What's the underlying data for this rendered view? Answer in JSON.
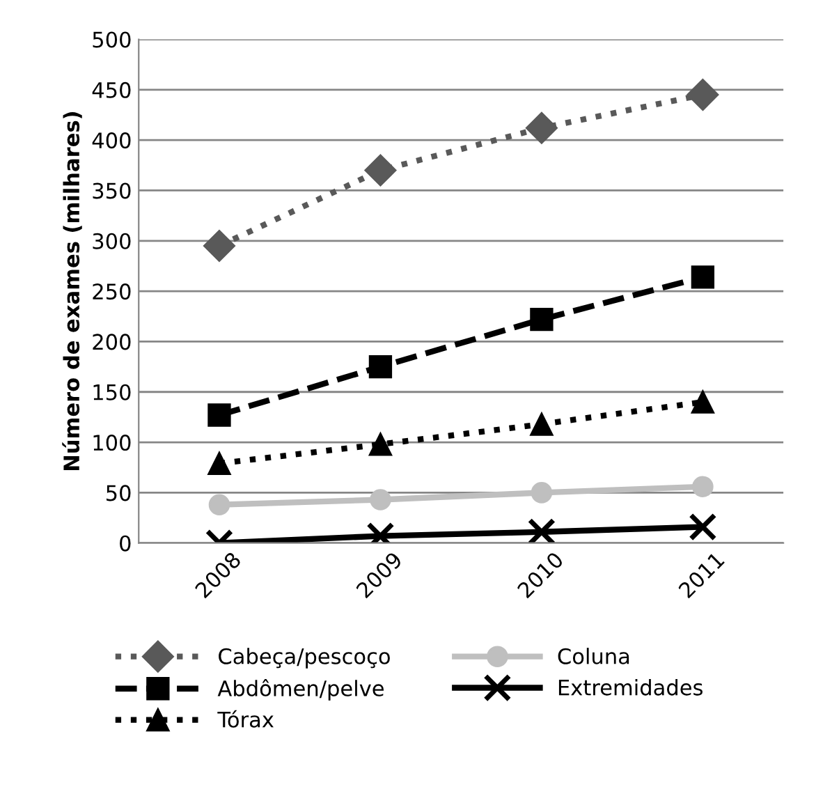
{
  "chart_data": {
    "type": "line",
    "ylabel": "Número de exames (milhares)",
    "categories": [
      "2008",
      "2009",
      "2010",
      "2011"
    ],
    "series": [
      {
        "name": "Cabeça/pescoço",
        "color": "#595959",
        "values": [
          295,
          370,
          412,
          445
        ],
        "marker": "diamond",
        "line_style": "dotted"
      },
      {
        "name": "Abdômen/pelve",
        "color": "#000000",
        "values": [
          127,
          175,
          222,
          264
        ],
        "marker": "square",
        "line_style": "dashed"
      },
      {
        "name": "Tórax",
        "color": "#000000",
        "values": [
          79,
          98,
          118,
          140
        ],
        "marker": "triangle",
        "line_style": "dotted"
      },
      {
        "name": "Coluna",
        "color": "#bfbfbf",
        "values": [
          38,
          43,
          50,
          56
        ],
        "marker": "circle",
        "line_style": "solid"
      },
      {
        "name": "Extremidades",
        "color": "#000000",
        "values": [
          0,
          7,
          11,
          16
        ],
        "marker": "cross",
        "line_style": "solid"
      }
    ],
    "ylim": [
      0,
      500
    ],
    "yticks": [
      0,
      50,
      100,
      150,
      200,
      250,
      300,
      350,
      400,
      450,
      500
    ],
    "grid": "y",
    "legend": "bottom"
  }
}
